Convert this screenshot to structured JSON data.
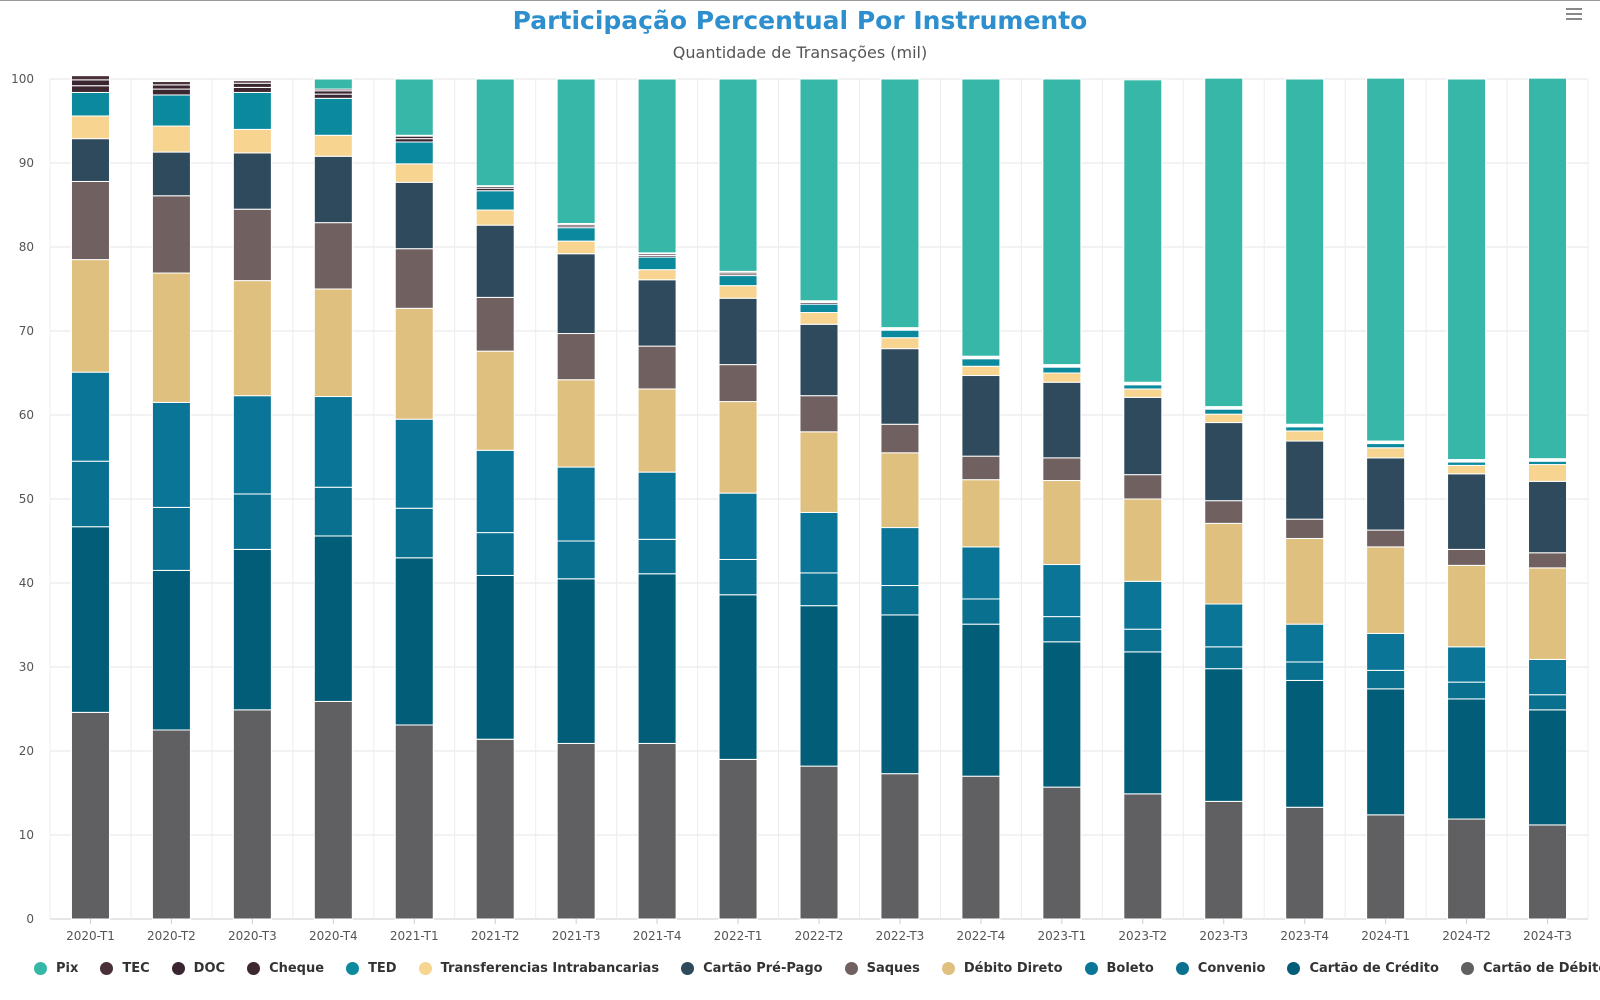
{
  "title": "Participação Percentual Por Instrumento",
  "subtitle": "Quantidade de Transações (mil)",
  "chart_data": {
    "type": "bar",
    "stacked": true,
    "title": "Participação Percentual Por Instrumento",
    "subtitle": "Quantidade de Transações (mil)",
    "xlabel": "",
    "ylabel": "",
    "ylim": [
      0,
      100
    ],
    "yticks": [
      0,
      10,
      20,
      30,
      40,
      50,
      60,
      70,
      80,
      90,
      100
    ],
    "grid": true,
    "legend_position": "bottom",
    "categories": [
      "2020-T1",
      "2020-T2",
      "2020-T3",
      "2020-T4",
      "2021-T1",
      "2021-T2",
      "2021-T3",
      "2021-T4",
      "2022-T1",
      "2022-T2",
      "2022-T3",
      "2022-T4",
      "2023-T1",
      "2023-T2",
      "2023-T3",
      "2023-T4",
      "2024-T1",
      "2024-T2",
      "2024-T3"
    ],
    "series": [
      {
        "name": "Cartão de Débito",
        "color": "#606062",
        "values": [
          24.6,
          22.5,
          24.9,
          25.9,
          23.1,
          21.4,
          20.9,
          20.9,
          19.0,
          18.2,
          17.3,
          17.0,
          15.7,
          14.9,
          14.0,
          13.3,
          12.4,
          11.9,
          11.2
        ]
      },
      {
        "name": "Cartão de Crédito",
        "color": "#025e78",
        "values": [
          22.1,
          19.0,
          19.1,
          19.7,
          19.9,
          19.5,
          19.6,
          20.2,
          19.6,
          19.1,
          18.9,
          18.1,
          17.3,
          16.9,
          15.8,
          15.1,
          15.0,
          14.3,
          13.7
        ]
      },
      {
        "name": "Convenio",
        "color": "#0a708f",
        "values": [
          7.8,
          7.5,
          6.6,
          5.8,
          5.9,
          5.1,
          4.5,
          4.1,
          4.2,
          3.9,
          3.5,
          3.0,
          3.0,
          2.7,
          2.6,
          2.2,
          2.2,
          2.0,
          1.8
        ]
      },
      {
        "name": "Boleto",
        "color": "#0b7597",
        "values": [
          10.6,
          12.5,
          11.7,
          10.8,
          10.6,
          9.8,
          8.8,
          8.0,
          7.9,
          7.2,
          6.9,
          6.2,
          6.2,
          5.7,
          5.1,
          4.5,
          4.4,
          4.2,
          4.2
        ]
      },
      {
        "name": "Débito Direto",
        "color": "#e0c07f",
        "values": [
          13.4,
          15.4,
          13.7,
          12.8,
          13.2,
          11.8,
          10.4,
          9.9,
          10.9,
          9.6,
          8.9,
          8.0,
          10.0,
          9.8,
          9.6,
          10.2,
          10.3,
          9.7,
          10.9
        ]
      },
      {
        "name": "Saques",
        "color": "#706060",
        "values": [
          9.3,
          9.2,
          8.5,
          7.9,
          7.1,
          6.4,
          5.5,
          5.1,
          4.4,
          4.3,
          3.4,
          2.8,
          2.7,
          2.9,
          2.7,
          2.3,
          2.0,
          1.9,
          1.8
        ]
      },
      {
        "name": "Cartão Pré-Pago",
        "color": "#2e4a5c",
        "values": [
          5.1,
          5.2,
          6.7,
          7.9,
          7.9,
          8.6,
          9.5,
          7.9,
          7.9,
          8.5,
          9.0,
          9.6,
          9.0,
          9.2,
          9.3,
          9.3,
          8.6,
          9.0,
          8.5
        ]
      },
      {
        "name": "Transferencias Intrabancarias",
        "color": "#f7d48f",
        "values": [
          2.7,
          3.1,
          2.8,
          2.5,
          2.2,
          1.8,
          1.5,
          1.2,
          1.5,
          1.4,
          1.3,
          1.1,
          1.1,
          1.0,
          1.0,
          1.2,
          1.2,
          1.0,
          2.0
        ]
      },
      {
        "name": "TED",
        "color": "#0a8a9c",
        "values": [
          2.8,
          3.7,
          4.4,
          4.4,
          2.6,
          2.3,
          1.6,
          1.5,
          1.2,
          1.0,
          0.9,
          0.9,
          0.7,
          0.5,
          0.6,
          0.5,
          0.5,
          0.4,
          0.4
        ]
      },
      {
        "name": "Cheque",
        "color": "#3d2832",
        "values": [
          0.8,
          0.7,
          0.6,
          0.5,
          0.4,
          0.3,
          0.2,
          0.2,
          0.2,
          0.2,
          0.1,
          0.1,
          0.1,
          0.1,
          0.1,
          0.1,
          0.1,
          0.1,
          0.1
        ]
      },
      {
        "name": "DOC",
        "color": "#3a2630",
        "values": [
          0.7,
          0.5,
          0.5,
          0.4,
          0.3,
          0.2,
          0.2,
          0.2,
          0.2,
          0.1,
          0.1,
          0.1,
          0.1,
          0.1,
          0.1,
          0.1,
          0.1,
          0.1,
          0.1
        ]
      },
      {
        "name": "TEC",
        "color": "#4a3138",
        "values": [
          0.5,
          0.4,
          0.3,
          0.2,
          0.1,
          0.1,
          0.1,
          0.1,
          0.1,
          0.1,
          0.1,
          0.1,
          0.1,
          0.1,
          0.1,
          0.1,
          0.1,
          0.1,
          0.1
        ]
      },
      {
        "name": "Pix",
        "color": "#36b7a7",
        "values": [
          0,
          0,
          0,
          1.2,
          6.7,
          12.7,
          17.2,
          20.7,
          22.9,
          26.4,
          29.6,
          33.0,
          34.0,
          36.0,
          39.1,
          41.1,
          43.2,
          45.3,
          45.3
        ]
      }
    ]
  },
  "legend": [
    {
      "label": "Pix",
      "color": "#36b7a7"
    },
    {
      "label": "TEC",
      "color": "#4a3138"
    },
    {
      "label": "DOC",
      "color": "#3a2630"
    },
    {
      "label": "Cheque",
      "color": "#3d2832"
    },
    {
      "label": "TED",
      "color": "#0a8a9c"
    },
    {
      "label": "Transferencias Intrabancarias",
      "color": "#f7d48f"
    },
    {
      "label": "Cartão Pré-Pago",
      "color": "#2e4a5c"
    },
    {
      "label": "Saques",
      "color": "#706060"
    },
    {
      "label": "Débito Direto",
      "color": "#e0c07f"
    },
    {
      "label": "Boleto",
      "color": "#0b7597"
    },
    {
      "label": "Convenio",
      "color": "#0a708f"
    },
    {
      "label": "Cartão de Crédito",
      "color": "#025e78"
    },
    {
      "label": "Cartão de Débito",
      "color": "#606062"
    }
  ],
  "menu": {
    "icon": "hamburger-menu-icon"
  }
}
